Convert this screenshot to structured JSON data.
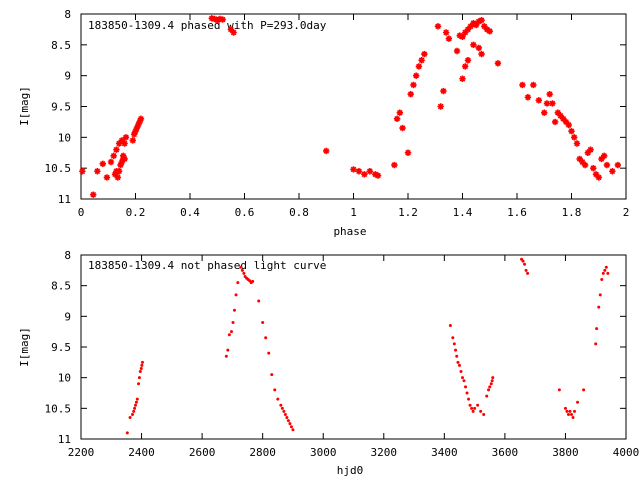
{
  "chart_data": [
    {
      "type": "scatter",
      "title": "183850-1309.4 phased with P=293.0day",
      "xlabel": "phase",
      "ylabel": "I[mag]",
      "xlim": [
        0,
        2
      ],
      "ylim": [
        8,
        11
      ],
      "y_inverted": true,
      "x_ticks": [
        0,
        0.2,
        0.4,
        0.6,
        0.8,
        1,
        1.2,
        1.4,
        1.6,
        1.8,
        2
      ],
      "x_tick_labels": [
        "0",
        "0.2",
        "0.4",
        "0.6",
        "0.8",
        "1",
        "1.2",
        "1.4",
        "1.6",
        "1.8",
        "2"
      ],
      "y_ticks": [
        8,
        8.5,
        9,
        9.5,
        10,
        10.5,
        11
      ],
      "y_tick_labels": [
        "8",
        "8.5",
        "9",
        "9.5",
        "10",
        "10.5",
        "11"
      ],
      "marker": "star",
      "color": "#ff0000",
      "series": [
        {
          "x": [
            0.005,
            0.045,
            0.06,
            0.08,
            0.095,
            0.11,
            0.12,
            0.125,
            0.13,
            0.135,
            0.14,
            0.145,
            0.15,
            0.155,
            0.16,
            0.165,
            0.13,
            0.14,
            0.15,
            0.155,
            0.16,
            0.19,
            0.195,
            0.2,
            0.205,
            0.21,
            0.215,
            0.22,
            0.48,
            0.49,
            0.5,
            0.51,
            0.52,
            0.55,
            0.56,
            0.9,
            1.0,
            1.02,
            1.04,
            1.06,
            1.08,
            1.09,
            1.15,
            1.16,
            1.17,
            1.18,
            1.2,
            1.21,
            1.22,
            1.23,
            1.24,
            1.25,
            1.26,
            1.31,
            1.32,
            1.33,
            1.34,
            1.35,
            1.38,
            1.39,
            1.4,
            1.41,
            1.42,
            1.43,
            1.44,
            1.45,
            1.46,
            1.47,
            1.48,
            1.49,
            1.5,
            1.4,
            1.41,
            1.42,
            1.44,
            1.46,
            1.47,
            1.53,
            1.62,
            1.64,
            1.66,
            1.68,
            1.7,
            1.71,
            1.72,
            1.73,
            1.74,
            1.75,
            1.76,
            1.77,
            1.78,
            1.79,
            1.8,
            1.81,
            1.82,
            1.83,
            1.84,
            1.85,
            1.86,
            1.87,
            1.88,
            1.89,
            1.9,
            1.91,
            1.92,
            1.93,
            1.95,
            1.97
          ],
          "y": [
            10.55,
            10.93,
            10.55,
            10.43,
            10.65,
            10.4,
            10.3,
            10.6,
            10.55,
            10.65,
            10.55,
            10.45,
            10.4,
            10.35,
            10.1,
            10.0,
            10.2,
            10.1,
            10.05,
            10.3,
            10.35,
            10.05,
            9.95,
            9.9,
            9.85,
            9.8,
            9.75,
            9.7,
            8.07,
            8.08,
            8.1,
            8.08,
            8.09,
            8.25,
            8.3,
            10.22,
            10.52,
            10.55,
            10.6,
            10.55,
            10.6,
            10.62,
            10.45,
            9.7,
            9.6,
            9.85,
            10.25,
            9.3,
            9.15,
            9.0,
            8.85,
            8.75,
            8.65,
            8.2,
            9.5,
            9.25,
            8.3,
            8.4,
            8.6,
            8.35,
            8.37,
            8.3,
            8.25,
            8.2,
            8.15,
            8.18,
            8.12,
            8.1,
            8.2,
            8.25,
            8.28,
            9.05,
            8.85,
            8.75,
            8.5,
            8.55,
            8.65,
            8.8,
            9.15,
            9.35,
            9.15,
            9.4,
            9.6,
            9.45,
            9.3,
            9.45,
            9.75,
            9.6,
            9.65,
            9.7,
            9.75,
            9.8,
            9.9,
            10.0,
            10.1,
            10.35,
            10.4,
            10.45,
            10.25,
            10.2,
            10.5,
            10.6,
            10.65,
            10.35,
            10.3,
            10.45,
            10.55,
            10.45
          ]
        }
      ]
    },
    {
      "type": "scatter",
      "title": "183850-1309.4 not phased light curve",
      "xlabel": "hjd0",
      "ylabel": "I[mag]",
      "xlim": [
        2200,
        4000
      ],
      "ylim": [
        8,
        11
      ],
      "y_inverted": true,
      "x_ticks": [
        2200,
        2400,
        2600,
        2800,
        3000,
        3200,
        3400,
        3600,
        3800,
        4000
      ],
      "x_tick_labels": [
        "2200",
        "2400",
        "2600",
        "2800",
        "3000",
        "3200",
        "3400",
        "3600",
        "3800",
        "4000"
      ],
      "y_ticks": [
        8,
        8.5,
        9,
        9.5,
        10,
        10.5,
        11
      ],
      "y_tick_labels": [
        "8",
        "8.5",
        "9",
        "9.5",
        "10",
        "10.5",
        "11"
      ],
      "marker": "dot",
      "color": "#ff0000",
      "series": [
        {
          "x": [
            2353,
            2362,
            2370,
            2374,
            2377,
            2380,
            2383,
            2386,
            2390,
            2393,
            2396,
            2399,
            2401,
            2403,
            2680,
            2685,
            2690,
            2697,
            2702,
            2707,
            2712,
            2718,
            2728,
            2733,
            2738,
            2742,
            2747,
            2752,
            2757,
            2762,
            2767,
            2787,
            2800,
            2810,
            2820,
            2830,
            2840,
            2850,
            2860,
            2865,
            2870,
            2875,
            2880,
            2885,
            2890,
            2895,
            2900,
            3420,
            3428,
            3433,
            3437,
            3441,
            3445,
            3450,
            3455,
            3460,
            3465,
            3470,
            3475,
            3480,
            3485,
            3490,
            3495,
            3500,
            3510,
            3520,
            3530,
            3540,
            3546,
            3550,
            3555,
            3558,
            3560,
            3655,
            3660,
            3665,
            3670,
            3675,
            3780,
            3800,
            3805,
            3810,
            3815,
            3820,
            3825,
            3830,
            3840,
            3860,
            3900,
            3903,
            3910,
            3915,
            3920,
            3925,
            3930,
            3935,
            3940
          ],
          "y": [
            10.9,
            10.65,
            10.6,
            10.55,
            10.5,
            10.45,
            10.4,
            10.35,
            10.1,
            10.0,
            9.9,
            9.85,
            9.8,
            9.75,
            9.65,
            9.55,
            9.3,
            9.25,
            9.1,
            8.9,
            8.65,
            8.45,
            8.2,
            8.25,
            8.3,
            8.35,
            8.38,
            8.4,
            8.42,
            8.45,
            8.43,
            8.75,
            9.1,
            9.35,
            9.6,
            9.95,
            10.2,
            10.35,
            10.45,
            10.5,
            10.55,
            10.6,
            10.65,
            10.7,
            10.75,
            10.8,
            10.85,
            9.15,
            9.35,
            9.45,
            9.55,
            9.65,
            9.75,
            9.8,
            9.9,
            10.0,
            10.05,
            10.15,
            10.25,
            10.35,
            10.45,
            10.5,
            10.55,
            10.5,
            10.45,
            10.55,
            10.6,
            10.3,
            10.2,
            10.15,
            10.1,
            10.05,
            10.0,
            8.07,
            8.1,
            8.15,
            8.25,
            8.3,
            10.2,
            10.5,
            10.55,
            10.6,
            10.55,
            10.6,
            10.65,
            10.55,
            10.4,
            10.2,
            9.45,
            9.2,
            8.85,
            8.65,
            8.4,
            8.3,
            8.25,
            8.2,
            8.3
          ]
        }
      ]
    }
  ]
}
